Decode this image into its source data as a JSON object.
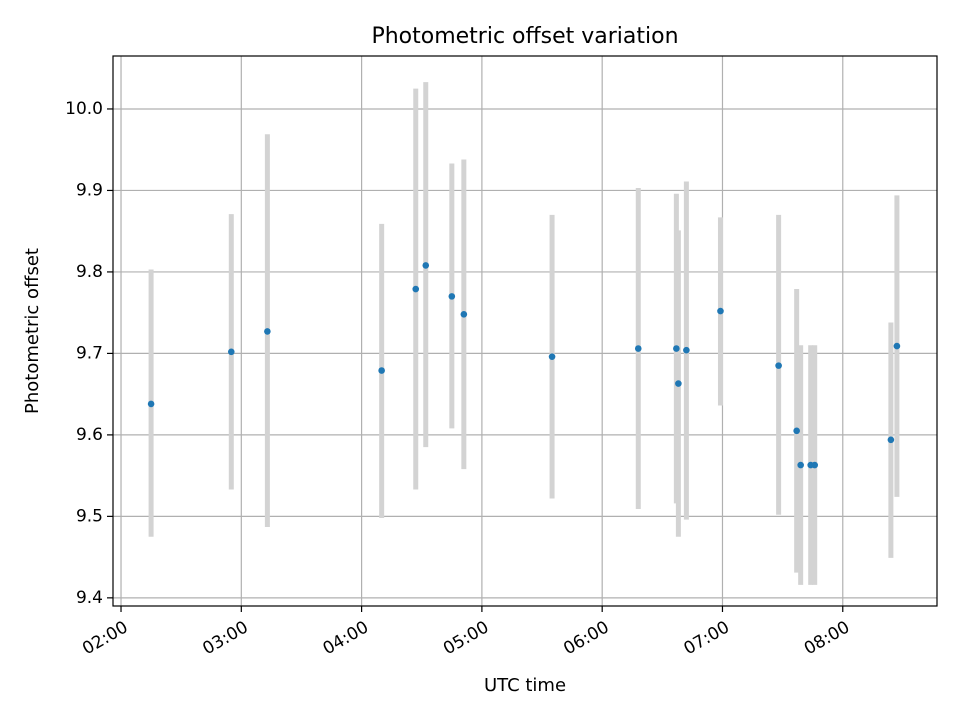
{
  "chart_data": {
    "type": "scatter",
    "title": "Photometric offset variation",
    "xlabel": "UTC time",
    "ylabel": "Photometric offset",
    "x_ticks": [
      "02:00",
      "03:00",
      "04:00",
      "05:00",
      "06:00",
      "07:00",
      "08:00"
    ],
    "x_tick_hours": [
      2,
      3,
      4,
      5,
      6,
      7,
      8
    ],
    "y_ticks": [
      "9.4",
      "9.5",
      "9.6",
      "9.7",
      "9.8",
      "9.9",
      "10.0"
    ],
    "xlim": [
      "01:56",
      "08:47"
    ],
    "ylim": [
      9.39,
      10.065
    ],
    "grid": true,
    "colors": {
      "points": "#1f77b4",
      "errorbars": "#d3d3d3",
      "grid": "#b0b0b0"
    },
    "points": [
      {
        "time": "02:15",
        "y": 9.638,
        "err_low": 9.475,
        "err_high": 9.803
      },
      {
        "time": "02:55",
        "y": 9.702,
        "err_low": 9.533,
        "err_high": 9.871
      },
      {
        "time": "03:13",
        "y": 9.727,
        "err_low": 9.487,
        "err_high": 9.969
      },
      {
        "time": "04:10",
        "y": 9.679,
        "err_low": 9.498,
        "err_high": 9.859
      },
      {
        "time": "04:27",
        "y": 9.779,
        "err_low": 9.533,
        "err_high": 10.025
      },
      {
        "time": "04:32",
        "y": 9.808,
        "err_low": 9.585,
        "err_high": 10.033
      },
      {
        "time": "04:45",
        "y": 9.77,
        "err_low": 9.608,
        "err_high": 9.933
      },
      {
        "time": "04:51",
        "y": 9.748,
        "err_low": 9.558,
        "err_high": 9.938
      },
      {
        "time": "05:35",
        "y": 9.696,
        "err_low": 9.522,
        "err_high": 9.87
      },
      {
        "time": "06:18",
        "y": 9.706,
        "err_low": 9.509,
        "err_high": 9.903
      },
      {
        "time": "06:37",
        "y": 9.706,
        "err_low": 9.516,
        "err_high": 9.896
      },
      {
        "time": "06:38",
        "y": 9.663,
        "err_low": 9.475,
        "err_high": 9.851
      },
      {
        "time": "06:42",
        "y": 9.704,
        "err_low": 9.496,
        "err_high": 9.911
      },
      {
        "time": "06:59",
        "y": 9.752,
        "err_low": 9.636,
        "err_high": 9.867
      },
      {
        "time": "07:28",
        "y": 9.685,
        "err_low": 9.502,
        "err_high": 9.87
      },
      {
        "time": "07:37",
        "y": 9.605,
        "err_low": 9.431,
        "err_high": 9.779
      },
      {
        "time": "07:39",
        "y": 9.563,
        "err_low": 9.416,
        "err_high": 9.71
      },
      {
        "time": "07:44",
        "y": 9.563,
        "err_low": 9.416,
        "err_high": 9.71
      },
      {
        "time": "07:46",
        "y": 9.563,
        "err_low": 9.416,
        "err_high": 9.71
      },
      {
        "time": "08:24",
        "y": 9.594,
        "err_low": 9.449,
        "err_high": 9.738
      },
      {
        "time": "08:27",
        "y": 9.709,
        "err_low": 9.524,
        "err_high": 9.894
      }
    ]
  }
}
